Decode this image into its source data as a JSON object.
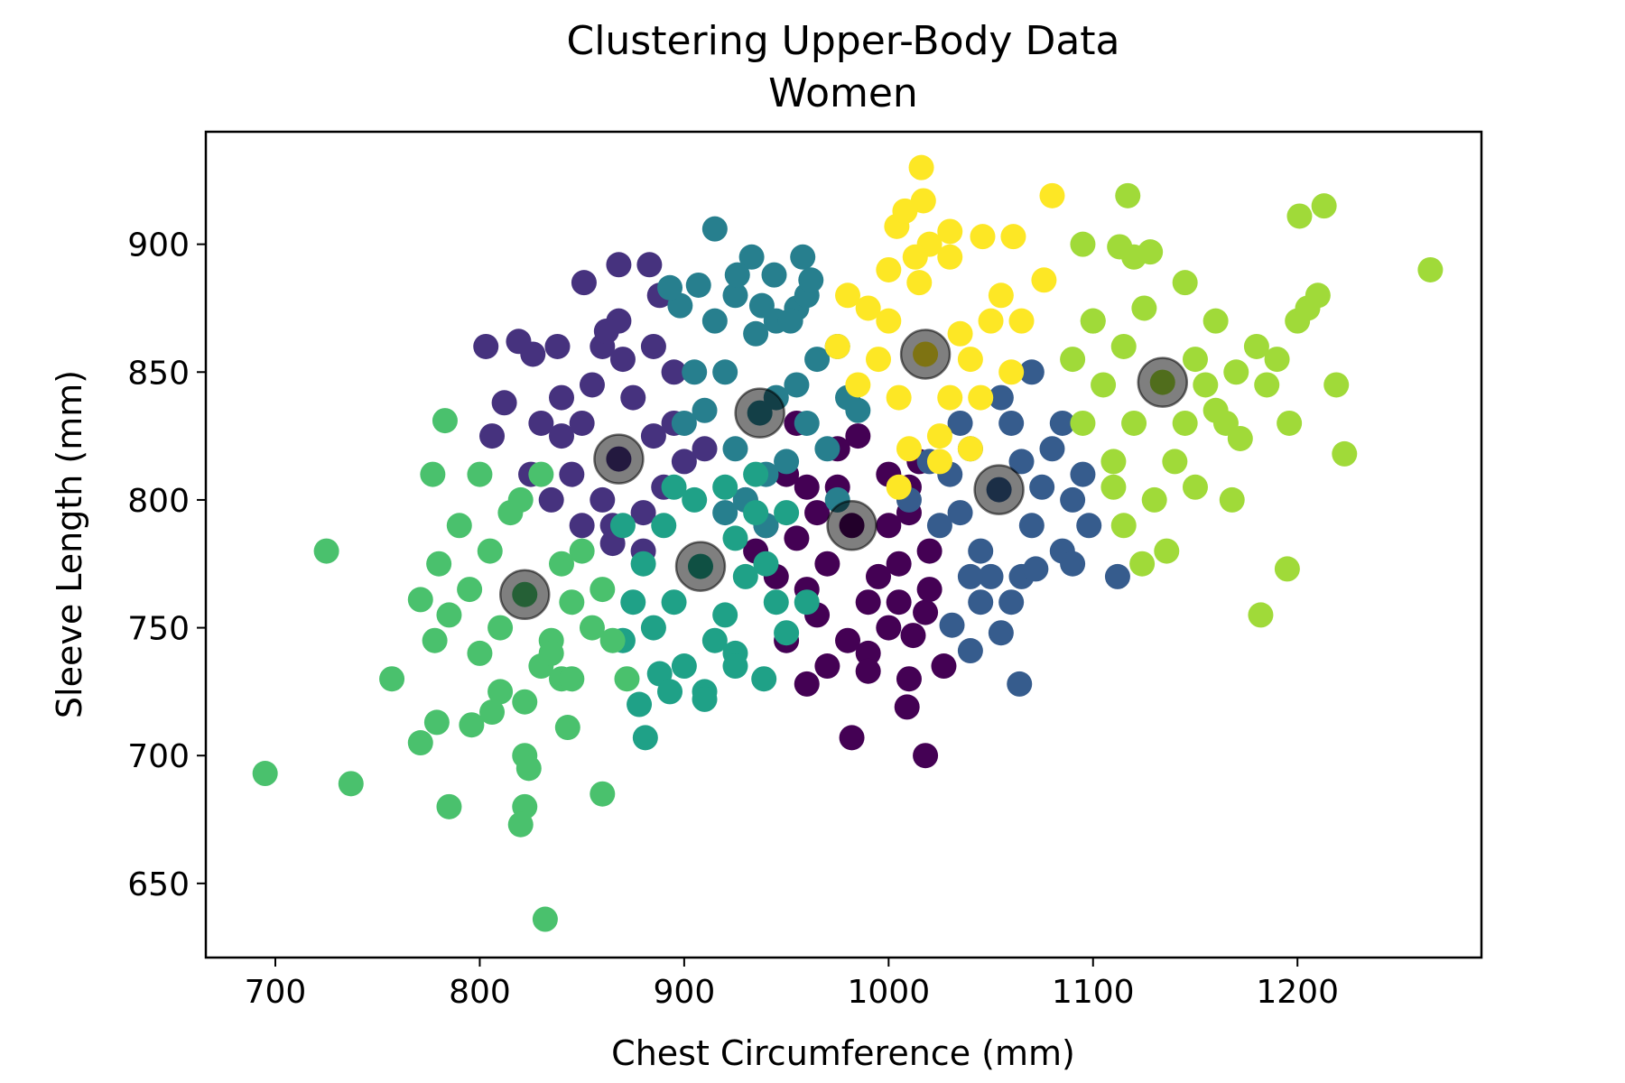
{
  "chart_data": {
    "type": "scatter",
    "title": "Clustering Upper-Body Data",
    "subtitle": "Women",
    "xlabel": "Chest Circumference (mm)",
    "ylabel": "Sleeve Length (mm)",
    "xlim": [
      666,
      1290
    ],
    "ylim": [
      621,
      944
    ],
    "xticks": [
      700,
      800,
      900,
      1000,
      1100,
      1200
    ],
    "yticks": [
      650,
      700,
      750,
      800,
      850,
      900
    ],
    "grid": false,
    "legend": "none",
    "colors": {
      "cluster_0": "#440154",
      "cluster_1": "#46327e",
      "cluster_2": "#365c8d",
      "cluster_3": "#277f8e",
      "cluster_4": "#1fa187",
      "cluster_5": "#4ac16d",
      "cluster_6": "#a0da39",
      "cluster_7": "#fde725",
      "centroid": "#000000"
    },
    "clusters": [
      {
        "id": 0,
        "color": "#440154",
        "centroid": [
          982,
          790
        ],
        "points": [
          [
            982,
            790
          ],
          [
            960,
            805
          ],
          [
            1000,
            810
          ],
          [
            970,
            775
          ],
          [
            995,
            770
          ],
          [
            975,
            820
          ],
          [
            1010,
            795
          ],
          [
            955,
            785
          ],
          [
            990,
            760
          ],
          [
            965,
            755
          ],
          [
            1005,
            775
          ],
          [
            985,
            825
          ],
          [
            950,
            810
          ],
          [
            1015,
            815
          ],
          [
            940,
            790
          ],
          [
            960,
            765
          ],
          [
            980,
            745
          ],
          [
            1000,
            750
          ],
          [
            1020,
            780
          ],
          [
            945,
            770
          ],
          [
            990,
            740
          ],
          [
            1005,
            760
          ],
          [
            970,
            735
          ],
          [
            1010,
            730
          ],
          [
            990,
            733
          ],
          [
            1018,
            756
          ],
          [
            1027,
            735
          ],
          [
            1009,
            719
          ],
          [
            960,
            728
          ],
          [
            982,
            707
          ],
          [
            1018,
            700
          ],
          [
            1012,
            747
          ],
          [
            1020,
            765
          ],
          [
            950,
            745
          ],
          [
            975,
            805
          ],
          [
            1000,
            790
          ],
          [
            965,
            795
          ],
          [
            1010,
            805
          ],
          [
            930,
            800
          ],
          [
            935,
            780
          ],
          [
            955,
            830
          ]
        ]
      },
      {
        "id": 1,
        "color": "#46327e",
        "centroid": [
          868,
          816
        ],
        "points": [
          [
            868,
            816
          ],
          [
            850,
            830
          ],
          [
            885,
            825
          ],
          [
            860,
            800
          ],
          [
            875,
            840
          ],
          [
            845,
            810
          ],
          [
            890,
            805
          ],
          [
            855,
            845
          ],
          [
            880,
            795
          ],
          [
            840,
            825
          ],
          [
            895,
            830
          ],
          [
            865,
            790
          ],
          [
            870,
            855
          ],
          [
            835,
            800
          ],
          [
            900,
            815
          ],
          [
            850,
            790
          ],
          [
            860,
            860
          ],
          [
            885,
            860
          ],
          [
            830,
            830
          ],
          [
            910,
            820
          ],
          [
            803,
            860
          ],
          [
            812,
            838
          ],
          [
            806,
            825
          ],
          [
            819,
            862
          ],
          [
            826,
            857
          ],
          [
            838,
            860
          ],
          [
            851,
            885
          ],
          [
            868,
            892
          ],
          [
            883,
            892
          ],
          [
            868,
            870
          ],
          [
            862,
            866
          ],
          [
            888,
            880
          ],
          [
            880,
            780
          ],
          [
            865,
            783
          ],
          [
            825,
            810
          ],
          [
            840,
            840
          ],
          [
            895,
            850
          ]
        ]
      },
      {
        "id": 2,
        "color": "#365c8d",
        "centroid": [
          1054,
          804
        ],
        "points": [
          [
            1054,
            804
          ],
          [
            1040,
            820
          ],
          [
            1065,
            815
          ],
          [
            1035,
            795
          ],
          [
            1070,
            790
          ],
          [
            1045,
            780
          ],
          [
            1060,
            830
          ],
          [
            1030,
            810
          ],
          [
            1075,
            805
          ],
          [
            1050,
            770
          ],
          [
            1080,
            820
          ],
          [
            1025,
            790
          ],
          [
            1055,
            840
          ],
          [
            1090,
            800
          ],
          [
            1020,
            815
          ],
          [
            1040,
            770
          ],
          [
            1065,
            770
          ],
          [
            1085,
            780
          ],
          [
            1095,
            810
          ],
          [
            1010,
            800
          ],
          [
            1045,
            760
          ],
          [
            1070,
            850
          ],
          [
            1090,
            775
          ],
          [
            1098,
            790
          ],
          [
            1112,
            770
          ],
          [
            1072,
            773
          ],
          [
            1031,
            751
          ],
          [
            1055,
            748
          ],
          [
            1040,
            741
          ],
          [
            1064,
            728
          ],
          [
            1085,
            830
          ],
          [
            1035,
            830
          ],
          [
            1060,
            760
          ]
        ]
      },
      {
        "id": 3,
        "color": "#277f8e",
        "centroid": [
          937,
          834
        ],
        "points": [
          [
            937,
            834
          ],
          [
            920,
            850
          ],
          [
            955,
            845
          ],
          [
            925,
            820
          ],
          [
            950,
            815
          ],
          [
            935,
            865
          ],
          [
            960,
            830
          ],
          [
            910,
            835
          ],
          [
            945,
            870
          ],
          [
            930,
            800
          ],
          [
            965,
            855
          ],
          [
            915,
            870
          ],
          [
            970,
            820
          ],
          [
            905,
            850
          ],
          [
            940,
            810
          ],
          [
            955,
            875
          ],
          [
            925,
            880
          ],
          [
            960,
            880
          ],
          [
            900,
            830
          ],
          [
            980,
            840
          ],
          [
            915,
            906
          ],
          [
            933,
            895
          ],
          [
            958,
            895
          ],
          [
            944,
            888
          ],
          [
            952,
            870
          ],
          [
            898,
            876
          ],
          [
            893,
            883
          ],
          [
            907,
            884
          ],
          [
            926,
            888
          ],
          [
            938,
            876
          ],
          [
            962,
            886
          ],
          [
            945,
            840
          ],
          [
            920,
            795
          ],
          [
            940,
            790
          ],
          [
            975,
            800
          ],
          [
            985,
            835
          ],
          [
            975,
            860
          ]
        ]
      },
      {
        "id": 4,
        "color": "#1fa187",
        "centroid": [
          908,
          774
        ],
        "points": [
          [
            908,
            774
          ],
          [
            890,
            790
          ],
          [
            925,
            785
          ],
          [
            895,
            760
          ],
          [
            920,
            755
          ],
          [
            905,
            800
          ],
          [
            930,
            770
          ],
          [
            880,
            775
          ],
          [
            915,
            745
          ],
          [
            885,
            750
          ],
          [
            935,
            795
          ],
          [
            900,
            735
          ],
          [
            925,
            740
          ],
          [
            875,
            760
          ],
          [
            940,
            775
          ],
          [
            895,
            805
          ],
          [
            920,
            805
          ],
          [
            870,
            790
          ],
          [
            945,
            760
          ],
          [
            910,
            725
          ],
          [
            888,
            732
          ],
          [
            878,
            720
          ],
          [
            893,
            725
          ],
          [
            910,
            722
          ],
          [
            925,
            735
          ],
          [
            939,
            730
          ],
          [
            950,
            748
          ],
          [
            881,
            707
          ],
          [
            960,
            760
          ],
          [
            950,
            795
          ],
          [
            870,
            745
          ],
          [
            935,
            810
          ]
        ]
      },
      {
        "id": 5,
        "color": "#4ac16d",
        "centroid": [
          822,
          763
        ],
        "points": [
          [
            822,
            763
          ],
          [
            805,
            780
          ],
          [
            840,
            775
          ],
          [
            810,
            750
          ],
          [
            835,
            745
          ],
          [
            815,
            795
          ],
          [
            845,
            760
          ],
          [
            795,
            765
          ],
          [
            830,
            735
          ],
          [
            800,
            740
          ],
          [
            850,
            780
          ],
          [
            820,
            800
          ],
          [
            790,
            790
          ],
          [
            855,
            750
          ],
          [
            810,
            725
          ],
          [
            840,
            730
          ],
          [
            785,
            755
          ],
          [
            860,
            765
          ],
          [
            800,
            810
          ],
          [
            830,
            810
          ],
          [
            725,
            780
          ],
          [
            771,
            761
          ],
          [
            777,
            810
          ],
          [
            783,
            831
          ],
          [
            757,
            730
          ],
          [
            771,
            705
          ],
          [
            779,
            713
          ],
          [
            796,
            712
          ],
          [
            806,
            717
          ],
          [
            822,
            721
          ],
          [
            822,
            700
          ],
          [
            824,
            695
          ],
          [
            822,
            680
          ],
          [
            820,
            673
          ],
          [
            832,
            636
          ],
          [
            785,
            680
          ],
          [
            737,
            689
          ],
          [
            695,
            693
          ],
          [
            860,
            685
          ],
          [
            843,
            711
          ],
          [
            845,
            730
          ],
          [
            835,
            740
          ],
          [
            865,
            745
          ],
          [
            872,
            730
          ],
          [
            780,
            775
          ],
          [
            778,
            745
          ]
        ]
      },
      {
        "id": 6,
        "color": "#a0da39",
        "centroid": [
          1134,
          846
        ],
        "points": [
          [
            1134,
            846
          ],
          [
            1115,
            860
          ],
          [
            1150,
            855
          ],
          [
            1120,
            830
          ],
          [
            1145,
            830
          ],
          [
            1125,
            875
          ],
          [
            1155,
            845
          ],
          [
            1105,
            845
          ],
          [
            1140,
            815
          ],
          [
            1110,
            815
          ],
          [
            1160,
            870
          ],
          [
            1130,
            800
          ],
          [
            1100,
            870
          ],
          [
            1165,
            830
          ],
          [
            1095,
            830
          ],
          [
            1150,
            805
          ],
          [
            1120,
            895
          ],
          [
            1145,
            885
          ],
          [
            1090,
            855
          ],
          [
            1170,
            850
          ],
          [
            1095,
            900
          ],
          [
            1113,
            899
          ],
          [
            1128,
            897
          ],
          [
            1117,
            919
          ],
          [
            1180,
            860
          ],
          [
            1185,
            845
          ],
          [
            1190,
            855
          ],
          [
            1200,
            870
          ],
          [
            1205,
            875
          ],
          [
            1210,
            880
          ],
          [
            1213,
            915
          ],
          [
            1201,
            911
          ],
          [
            1196,
            830
          ],
          [
            1172,
            824
          ],
          [
            1168,
            800
          ],
          [
            1182,
            755
          ],
          [
            1195,
            773
          ],
          [
            1219,
            845
          ],
          [
            1223,
            818
          ],
          [
            1265,
            890
          ],
          [
            1136,
            780
          ],
          [
            1124,
            775
          ],
          [
            1115,
            790
          ],
          [
            1110,
            805
          ],
          [
            1100,
            870
          ],
          [
            1160,
            835
          ]
        ]
      },
      {
        "id": 7,
        "color": "#fde725",
        "centroid": [
          1018,
          857
        ],
        "points": [
          [
            1018,
            857
          ],
          [
            1000,
            870
          ],
          [
            1035,
            865
          ],
          [
            1005,
            840
          ],
          [
            1030,
            840
          ],
          [
            1015,
            885
          ],
          [
            1040,
            855
          ],
          [
            995,
            855
          ],
          [
            1025,
            825
          ],
          [
            1010,
            820
          ],
          [
            1050,
            870
          ],
          [
            1000,
            890
          ],
          [
            985,
            845
          ],
          [
            1045,
            840
          ],
          [
            990,
            875
          ],
          [
            1020,
            900
          ],
          [
            1030,
            895
          ],
          [
            1055,
            880
          ],
          [
            975,
            860
          ],
          [
            1005,
            805
          ],
          [
            1016,
            930
          ],
          [
            1017,
            917
          ],
          [
            1004,
            907
          ],
          [
            1008,
            913
          ],
          [
            1013,
            895
          ],
          [
            1030,
            905
          ],
          [
            1046,
            903
          ],
          [
            1061,
            903
          ],
          [
            1076,
            886
          ],
          [
            1080,
            919
          ],
          [
            1065,
            870
          ],
          [
            980,
            880
          ],
          [
            1040,
            820
          ],
          [
            1025,
            815
          ],
          [
            1060,
            850
          ]
        ]
      }
    ]
  }
}
